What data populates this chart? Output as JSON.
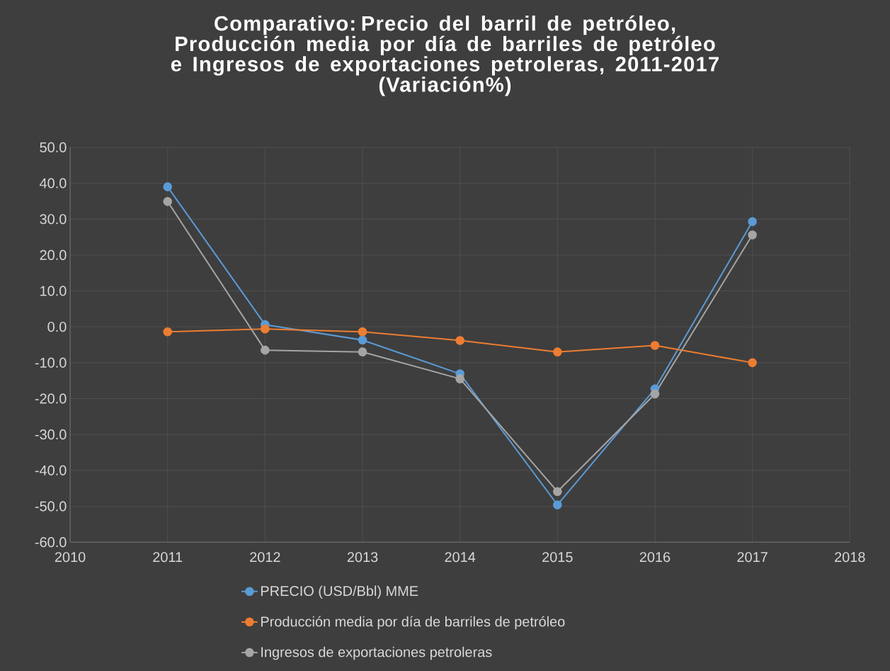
{
  "chart_data": {
    "type": "line",
    "title": "Comparativo: Precio del barril de petróleo, Producción media por día de barriles de petróleo e Ingresos de exportaciones petroleras, 2011-2017",
    "subtitle": "(Variación%)",
    "x": [
      2011,
      2012,
      2013,
      2014,
      2015,
      2016,
      2017
    ],
    "series": [
      {
        "name": "PRECIO (USD/Bbl) MME",
        "color": "#5b9bd5",
        "values": [
          39.0,
          0.6,
          -3.7,
          -13.1,
          -49.6,
          -17.3,
          29.3
        ]
      },
      {
        "name": "Producción media por día de barriles de petróleo",
        "color": "#ed7d31",
        "values": [
          -1.4,
          -0.6,
          -1.4,
          -3.8,
          -7.0,
          -5.2,
          -10.0
        ]
      },
      {
        "name": "Ingresos de exportaciones petroleras",
        "color": "#a5a5a5",
        "values": [
          34.9,
          -6.5,
          -7.0,
          -14.5,
          -45.9,
          -18.7,
          25.6
        ]
      }
    ],
    "xlim": [
      2010,
      2018
    ],
    "xticks": [
      2010,
      2011,
      2012,
      2013,
      2014,
      2015,
      2016,
      2017,
      2018
    ],
    "ylim": [
      -60,
      50
    ],
    "yticks": [
      {
        "value": -60,
        "label": "-60.0"
      },
      {
        "value": -50,
        "label": "-50.0"
      },
      {
        "value": -40,
        "label": "-40.0"
      },
      {
        "value": -30,
        "label": "-30.0"
      },
      {
        "value": -20,
        "label": "-20.0"
      },
      {
        "value": -10,
        "label": "-10.0"
      },
      {
        "value": 0,
        "label": "0.0"
      },
      {
        "value": 10,
        "label": "10.0"
      },
      {
        "value": 20,
        "label": "20.0"
      },
      {
        "value": 30,
        "label": "30.0"
      },
      {
        "value": 40,
        "label": "40.0"
      },
      {
        "value": 50,
        "label": "50.0"
      }
    ],
    "grid": true,
    "legend": "bottom",
    "marker": "circle",
    "line_style": "solid"
  }
}
